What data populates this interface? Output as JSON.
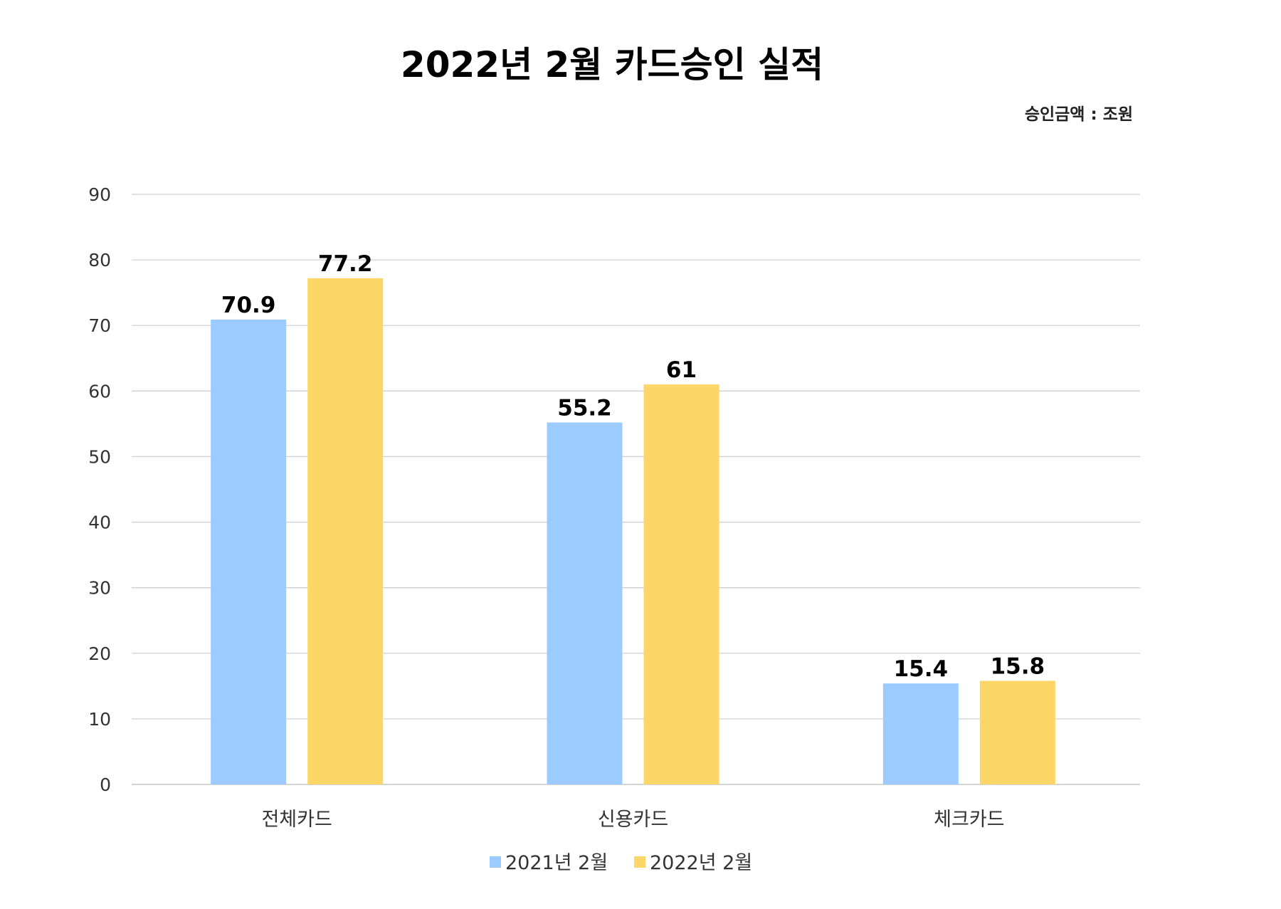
{
  "chart_data": {
    "type": "bar",
    "title": "2022년 2월 카드승인 실적",
    "unit_label": "승인금액 : 조원",
    "categories": [
      "전체카드",
      "신용카드",
      "체크카드"
    ],
    "series": [
      {
        "name": "2021년 2월",
        "values": [
          70.9,
          55.2,
          15.4
        ],
        "color": "#9BCBFF"
      },
      {
        "name": "2022년 2월",
        "values": [
          77.2,
          61,
          15.8
        ],
        "color": "#FCD767"
      }
    ],
    "ylim": [
      0,
      90
    ],
    "yticks": [
      0,
      10,
      20,
      30,
      40,
      50,
      60,
      70,
      80,
      90
    ],
    "grid": true,
    "data_labels": true,
    "legend": "bottom"
  }
}
